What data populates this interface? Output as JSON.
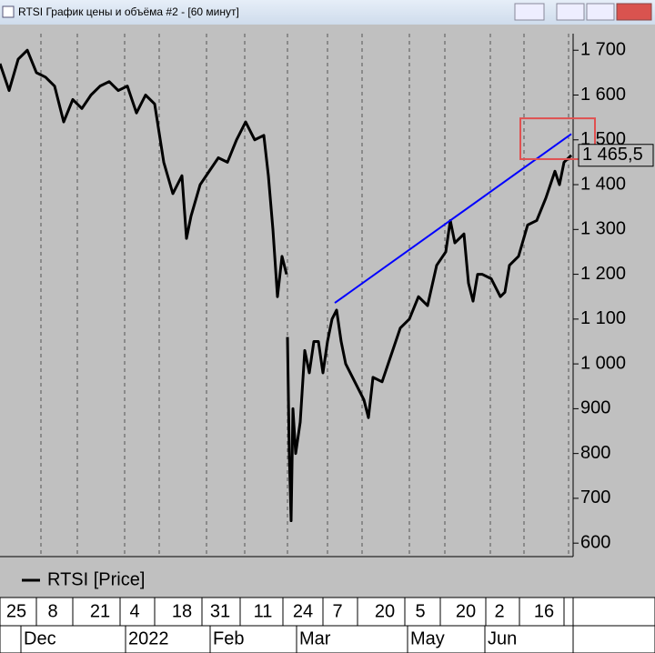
{
  "window": {
    "title": "RTSI График цены и объёма #2 - [60 минут]"
  },
  "chart_data": {
    "type": "line",
    "x": [
      0,
      10,
      20,
      30,
      40,
      50,
      60,
      70,
      80,
      90,
      100,
      110,
      120,
      130,
      140,
      150,
      160,
      170,
      180,
      190,
      200,
      205,
      210,
      220,
      230,
      240,
      250,
      260,
      270,
      280,
      290,
      295,
      300,
      305,
      310,
      315,
      315.5,
      316,
      318,
      320,
      322,
      325,
      330,
      335,
      340,
      345,
      350,
      355,
      360,
      365,
      370,
      375,
      380,
      390,
      400,
      405,
      410,
      420,
      430,
      440,
      450,
      460,
      470,
      480,
      490,
      495,
      500,
      510,
      515,
      520,
      525,
      530,
      540,
      550,
      555,
      560,
      570,
      580,
      590,
      600,
      610,
      615,
      620,
      628
    ],
    "series": [
      {
        "name": "RTSI [Price]",
        "color": "#000000",
        "values": [
          1670,
          1610,
          1680,
          1700,
          1650,
          1640,
          1620,
          1540,
          1590,
          1570,
          1600,
          1620,
          1630,
          1610,
          1620,
          1560,
          1600,
          1580,
          1450,
          1380,
          1420,
          1280,
          1330,
          1400,
          1430,
          1460,
          1450,
          1500,
          1540,
          1500,
          1510,
          1420,
          1300,
          1150,
          1240,
          1200,
          null,
          1060,
          800,
          650,
          900,
          800,
          870,
          1030,
          980,
          1050,
          1050,
          980,
          1050,
          1100,
          1120,
          1050,
          1000,
          960,
          920,
          880,
          970,
          960,
          1020,
          1080,
          1100,
          1150,
          1130,
          1220,
          1250,
          1320,
          1270,
          1290,
          1180,
          1140,
          1200,
          1200,
          1190,
          1150,
          1160,
          1220,
          1240,
          1310,
          1320,
          1370,
          1430,
          1400,
          1450,
          1465.5
        ]
      }
    ],
    "xlim": [
      0,
      630
    ],
    "ylim": [
      574,
      1737
    ],
    "yticks": [
      600,
      700,
      800,
      900,
      {
        "value": 1000,
        "label": "1 000"
      },
      {
        "value": 1100,
        "label": "1 100"
      },
      {
        "value": 1200,
        "label": "1 200"
      },
      {
        "value": 1300,
        "label": "1 300"
      },
      {
        "value": 1400,
        "label": "1 400"
      },
      {
        "value": 1500,
        "label": "1 500"
      },
      {
        "value": 1600,
        "label": "1 600"
      },
      {
        "value": 1700,
        "label": "1 700"
      }
    ],
    "xticks": [
      {
        "value": 18,
        "label": "25"
      },
      {
        "value": 58,
        "label": "8"
      },
      {
        "value": 110,
        "label": "21"
      },
      {
        "value": 148,
        "label": "4"
      },
      {
        "value": 200,
        "label": "18"
      },
      {
        "value": 242,
        "label": "31"
      },
      {
        "value": 289,
        "label": "11"
      },
      {
        "value": 333,
        "label": "24"
      },
      {
        "value": 371,
        "label": "7"
      },
      {
        "value": 423,
        "label": "20"
      },
      {
        "value": 462,
        "label": "5"
      },
      {
        "value": 512,
        "label": "20"
      },
      {
        "value": 549,
        "label": "2"
      },
      {
        "value": 598,
        "label": "16"
      }
    ],
    "month_ticks": [
      {
        "value": 45,
        "label": "Dec"
      },
      {
        "value": 160,
        "label": "2022"
      },
      {
        "value": 253,
        "label": "Feb"
      },
      {
        "value": 348,
        "label": "Mar"
      },
      {
        "value": 470,
        "label": "May"
      },
      {
        "value": 555,
        "label": "Jun"
      }
    ],
    "last_price": {
      "value": 1465.5,
      "label": "1 465,5"
    },
    "trendline": {
      "x": [
        368,
        628
      ],
      "values": [
        1136,
        1513
      ],
      "color": "#0000ff"
    },
    "highlight_box": {
      "x": [
        572,
        654
      ],
      "y": [
        1548,
        1457
      ],
      "color": "#e05050"
    },
    "grid": true
  }
}
